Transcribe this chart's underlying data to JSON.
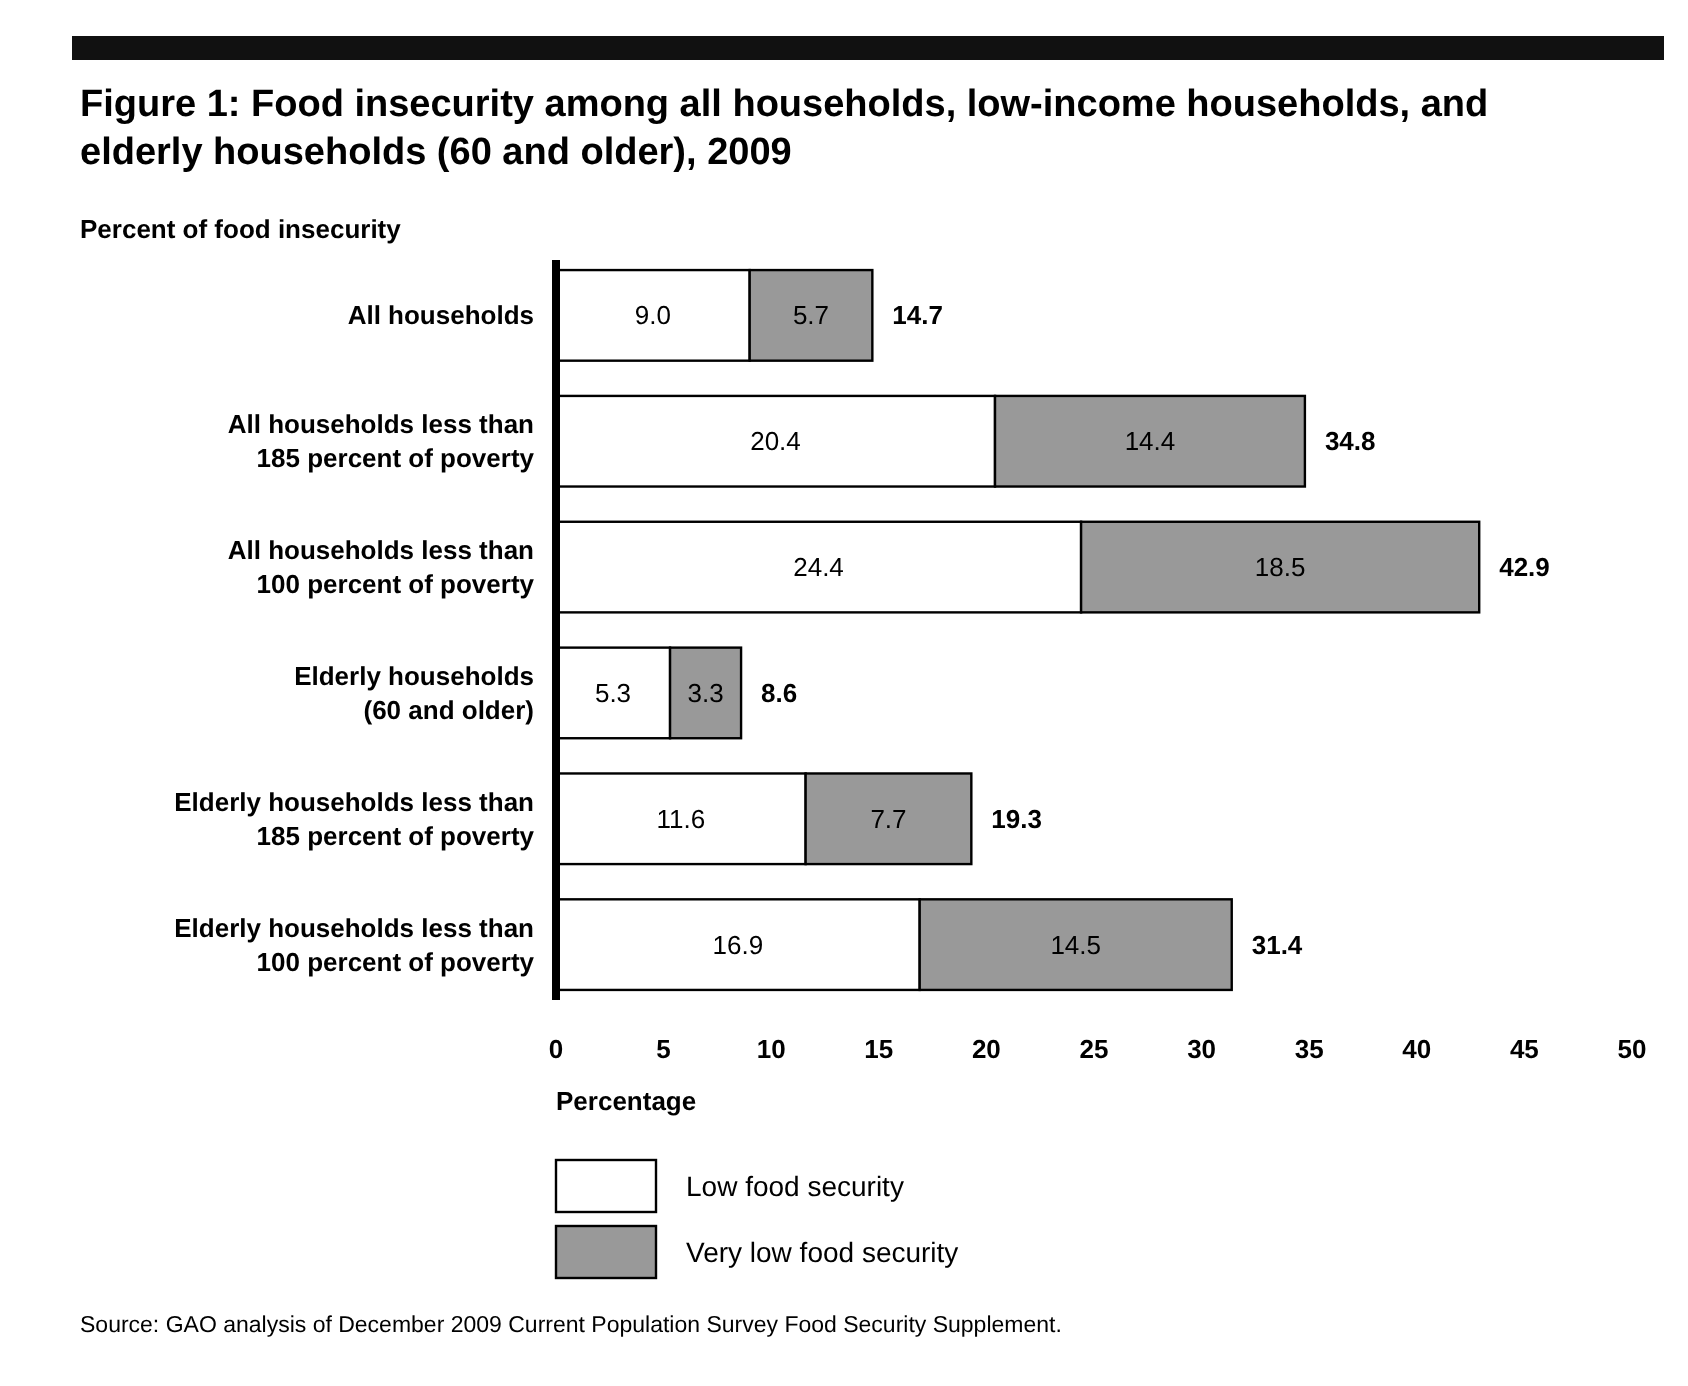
{
  "chart_data": {
    "type": "bar",
    "orientation": "horizontal",
    "stacked": true,
    "title": "Figure 1: Food insecurity among all households, low-income households, and elderly households (60 and older), 2009",
    "subtitle": "Percent of food insecurity",
    "xlabel": "Percentage",
    "categories": [
      "All households",
      "All households less than\n185 percent of poverty",
      "All households less than\n100 percent of poverty",
      "Elderly households\n(60 and older)",
      "Elderly households less than\n185 percent of poverty",
      "Elderly households less than\n100 percent of poverty"
    ],
    "series": [
      {
        "name": "Low food security",
        "color": "#ffffff",
        "values": [
          9.0,
          20.4,
          24.4,
          5.3,
          11.6,
          16.9
        ],
        "value_labels": [
          "9.0",
          "20.4",
          "24.4",
          "5.3",
          "11.6",
          "16.9"
        ]
      },
      {
        "name": "Very low food security",
        "color": "#999999",
        "values": [
          5.7,
          14.4,
          18.5,
          3.3,
          7.7,
          14.5
        ],
        "value_labels": [
          "5.7",
          "14.4",
          "18.5",
          "3.3",
          "7.7",
          "14.5"
        ]
      }
    ],
    "totals": [
      "14.7",
      "34.8",
      "42.9",
      "8.6",
      "19.3",
      "31.4"
    ],
    "xlim": [
      0,
      50
    ],
    "xticks": [
      0,
      5,
      10,
      15,
      20,
      25,
      30,
      35,
      40,
      45,
      50
    ],
    "grid": false,
    "legend": "bottom",
    "annotations": [
      "Source: GAO analysis of December 2009 Current Population Survey Food Security Supplement."
    ]
  }
}
